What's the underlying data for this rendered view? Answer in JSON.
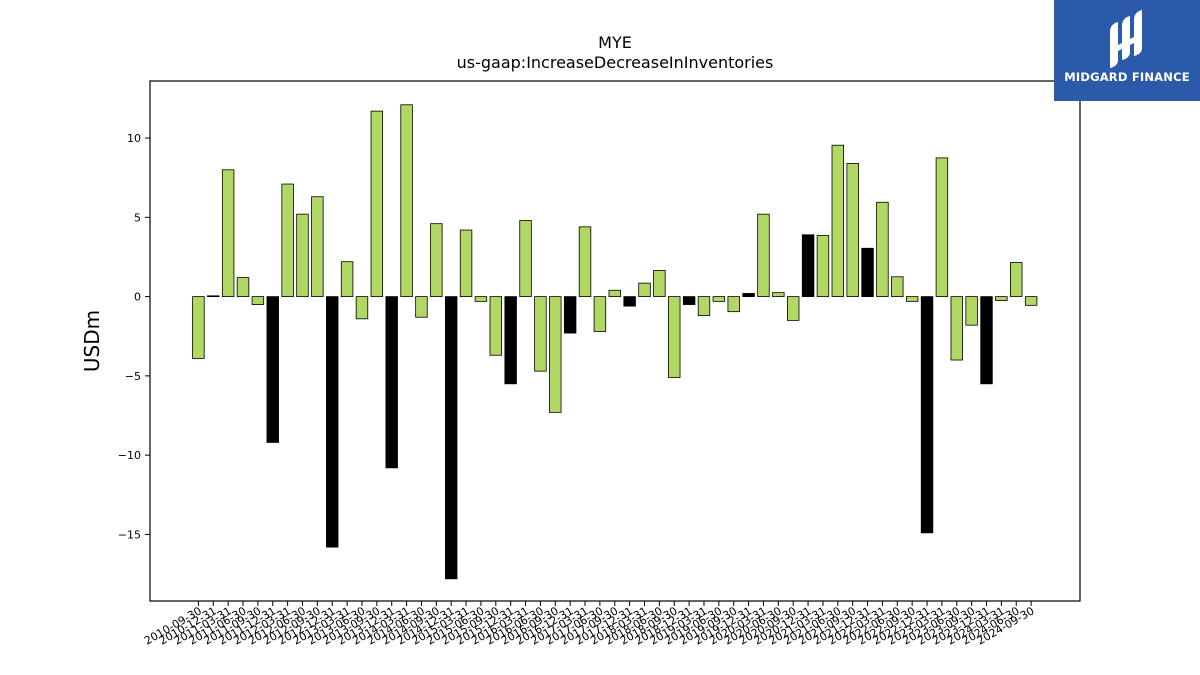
{
  "logo": {
    "text": "MIDGARD FINANCE"
  },
  "colors": {
    "positive": "#b1d864",
    "negative": "#b1d864",
    "highlight": "#000000",
    "logo_bg": "#2b5aab"
  },
  "chart_data": {
    "type": "bar",
    "title": "MYE",
    "subtitle": "us-gaap:IncreaseDecreaseInInventories",
    "xlabel": "",
    "ylabel": "USDm",
    "ylim": [
      -19.2,
      13.6
    ],
    "yticks": [
      10,
      5,
      0,
      -5,
      -10,
      -15
    ],
    "grid": false,
    "categories": [
      "2010-09-30",
      "2010-12-31",
      "2011-03-31",
      "2011-06-30",
      "2011-09-30",
      "2011-12-31",
      "2012-03-31",
      "2012-06-30",
      "2012-09-30",
      "2012-12-31",
      "2013-03-31",
      "2013-06-30",
      "2013-09-30",
      "2013-12-31",
      "2014-03-31",
      "2014-06-30",
      "2014-09-30",
      "2014-12-31",
      "2015-03-31",
      "2015-06-30",
      "2015-09-30",
      "2015-12-31",
      "2016-03-31",
      "2016-06-30",
      "2016-09-30",
      "2016-12-31",
      "2017-03-31",
      "2017-06-30",
      "2017-09-30",
      "2017-12-31",
      "2018-03-31",
      "2018-06-30",
      "2018-09-30",
      "2018-12-31",
      "2019-03-31",
      "2019-06-30",
      "2019-09-30",
      "2019-12-31",
      "2020-03-31",
      "2020-06-30",
      "2020-09-30",
      "2020-12-31",
      "2021-03-31",
      "2021-06-30",
      "2021-09-30",
      "2021-12-31",
      "2022-03-31",
      "2022-06-30",
      "2022-09-30",
      "2022-12-31",
      "2023-03-31",
      "2023-06-30",
      "2023-09-30",
      "2023-12-31",
      "2024-03-31",
      "2024-06-30",
      "2024-09-30"
    ],
    "values": [
      -3.9,
      0.05,
      8.0,
      1.2,
      -0.5,
      -9.2,
      7.1,
      5.2,
      6.3,
      -15.8,
      2.2,
      -1.4,
      11.7,
      -10.8,
      12.1,
      -1.3,
      4.6,
      -17.8,
      4.2,
      -0.3,
      -3.7,
      -5.5,
      4.8,
      -4.7,
      -7.3,
      -2.3,
      4.4,
      -2.2,
      0.4,
      -0.6,
      0.85,
      1.65,
      -5.1,
      -0.5,
      -1.2,
      -0.3,
      -0.95,
      0.2,
      5.2,
      0.25,
      -1.5,
      3.9,
      3.85,
      9.55,
      8.4,
      3.05,
      5.95,
      1.25,
      -0.3,
      -14.9,
      8.75,
      -4.0,
      -1.8,
      -5.5,
      -0.25,
      2.15,
      -0.55
    ],
    "highlight": [
      false,
      true,
      false,
      false,
      false,
      true,
      false,
      false,
      false,
      true,
      false,
      false,
      false,
      true,
      false,
      false,
      false,
      true,
      false,
      false,
      false,
      true,
      false,
      false,
      false,
      true,
      false,
      false,
      false,
      true,
      false,
      false,
      false,
      true,
      false,
      false,
      false,
      true,
      false,
      false,
      false,
      true,
      false,
      false,
      false,
      true,
      false,
      false,
      false,
      true,
      false,
      false,
      false,
      true,
      false,
      false,
      false
    ]
  }
}
